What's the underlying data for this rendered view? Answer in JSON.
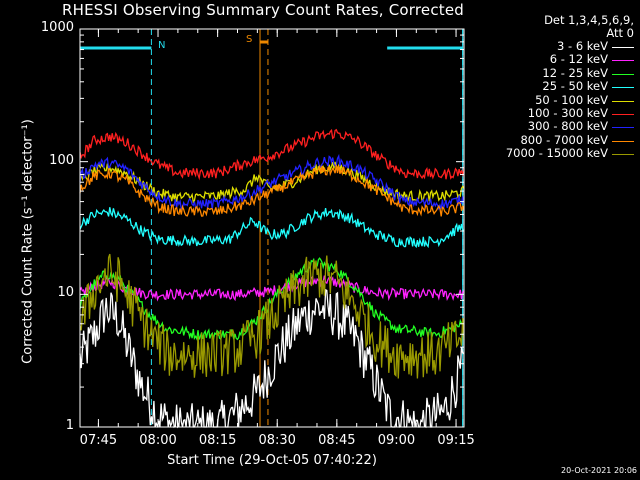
{
  "header": {
    "title": "RHESSI Observing Summary Count Rates, Corrected"
  },
  "footer": {
    "timestamp": "20-Oct-2021 20:06"
  },
  "colors": {
    "background": "#000000",
    "axes": "#ffffff",
    "night": "#22ddee",
    "saa": "#ee8800"
  },
  "chart_data": {
    "type": "line",
    "title": "RHESSI Observing Summary Count Rates, Corrected",
    "xlabel": "Start Time (29-Oct-05 07:40:22)",
    "ylabel": "Corrected Count Rate (s⁻¹ detector⁻¹)",
    "y_scale": "log",
    "ylim": [
      1,
      1000
    ],
    "xlim": [
      "07:40:22",
      "09:17:00"
    ],
    "y_ticks": [
      "1",
      "10",
      "100",
      "1000"
    ],
    "x_ticks": [
      "07:45",
      "08:00",
      "08:15",
      "08:30",
      "08:45",
      "09:00",
      "09:15"
    ],
    "legend_position": "right",
    "legend_header": [
      "Det 1,3,4,5,6,9,",
      "Att 0"
    ],
    "grid": false,
    "markers": {
      "N": {
        "label": "N",
        "color": "#22ddee",
        "solid_x": [
          "07:40:22",
          "09:16:40"
        ],
        "dashed_x": [
          "07:58:20",
          "09:16:40"
        ],
        "bars": [
          [
            "07:40:22",
            "07:58:20"
          ],
          [
            "08:57:40",
            "09:16:40"
          ]
        ]
      },
      "S": {
        "label": "S",
        "color": "#ee8800",
        "solid_x": [
          "08:25:40"
        ],
        "dashed_x": [
          "08:27:40"
        ],
        "bars": [
          [
            "08:25:40",
            "08:27:40"
          ]
        ]
      }
    },
    "series": [
      {
        "name": "3 - 6 keV",
        "color": "#ffffff",
        "points": [
          [
            "07:40",
            3.0
          ],
          [
            "07:44",
            5.0
          ],
          [
            "07:47",
            7.8
          ],
          [
            "07:50",
            6.5
          ],
          [
            "07:53",
            3.5
          ],
          [
            "07:56",
            2.0
          ],
          [
            "08:00",
            1.2
          ],
          [
            "08:05",
            1.0
          ],
          [
            "08:15",
            1.0
          ],
          [
            "08:20",
            1.3
          ],
          [
            "08:25",
            1.8
          ],
          [
            "08:30",
            3.5
          ],
          [
            "08:36",
            6.5
          ],
          [
            "08:40",
            8.0
          ],
          [
            "08:45",
            7.0
          ],
          [
            "08:50",
            4.5
          ],
          [
            "08:54",
            2.5
          ],
          [
            "08:58",
            1.3
          ],
          [
            "09:05",
            1.0
          ],
          [
            "09:12",
            1.3
          ],
          [
            "09:17",
            3.0
          ]
        ]
      },
      {
        "name": "6 - 12 keV",
        "color": "#ff22ff",
        "points": [
          [
            "07:40",
            10.0
          ],
          [
            "07:44",
            11.5
          ],
          [
            "07:48",
            12.5
          ],
          [
            "07:52",
            11.0
          ],
          [
            "07:56",
            10.2
          ],
          [
            "08:00",
            10.0
          ],
          [
            "08:10",
            10.0
          ],
          [
            "08:20",
            10.0
          ],
          [
            "08:28",
            10.5
          ],
          [
            "08:35",
            12.0
          ],
          [
            "08:42",
            13.0
          ],
          [
            "08:48",
            11.5
          ],
          [
            "08:55",
            10.2
          ],
          [
            "09:05",
            10.0
          ],
          [
            "09:17",
            10.0
          ]
        ]
      },
      {
        "name": "12 - 25 keV",
        "color": "#22ff22",
        "points": [
          [
            "07:40",
            8.0
          ],
          [
            "07:44",
            12.0
          ],
          [
            "07:47",
            14.5
          ],
          [
            "07:50",
            13.0
          ],
          [
            "07:54",
            9.5
          ],
          [
            "07:58",
            7.0
          ],
          [
            "08:02",
            5.5
          ],
          [
            "08:10",
            5.0
          ],
          [
            "08:20",
            5.0
          ],
          [
            "08:25",
            6.5
          ],
          [
            "08:30",
            10.0
          ],
          [
            "08:36",
            15.0
          ],
          [
            "08:40",
            17.5
          ],
          [
            "08:45",
            15.5
          ],
          [
            "08:50",
            11.0
          ],
          [
            "08:55",
            7.0
          ],
          [
            "09:00",
            5.5
          ],
          [
            "09:10",
            5.0
          ],
          [
            "09:17",
            6.0
          ]
        ]
      },
      {
        "name": "25 - 50 keV",
        "color": "#22ffff",
        "points": [
          [
            "07:40",
            33.0
          ],
          [
            "07:44",
            40.0
          ],
          [
            "07:48",
            42.0
          ],
          [
            "07:52",
            37.0
          ],
          [
            "07:56",
            30.0
          ],
          [
            "08:00",
            26.0
          ],
          [
            "08:10",
            25.0
          ],
          [
            "08:18",
            26.0
          ],
          [
            "08:24",
            36.0
          ],
          [
            "08:28",
            28.0
          ],
          [
            "08:32",
            29.0
          ],
          [
            "08:38",
            38.0
          ],
          [
            "08:43",
            42.0
          ],
          [
            "08:48",
            38.0
          ],
          [
            "08:54",
            29.0
          ],
          [
            "09:00",
            25.0
          ],
          [
            "09:10",
            25.0
          ],
          [
            "09:17",
            33.0
          ]
        ]
      },
      {
        "name": "50 - 100 keV",
        "color": "#dddd00",
        "points": [
          [
            "07:40",
            70.0
          ],
          [
            "07:44",
            85.0
          ],
          [
            "07:48",
            90.0
          ],
          [
            "07:52",
            82.0
          ],
          [
            "07:56",
            68.0
          ],
          [
            "08:00",
            58.0
          ],
          [
            "08:05",
            54.0
          ],
          [
            "08:15",
            55.0
          ],
          [
            "08:22",
            62.0
          ],
          [
            "08:25",
            78.0
          ],
          [
            "08:28",
            62.0
          ],
          [
            "08:34",
            70.0
          ],
          [
            "08:40",
            88.0
          ],
          [
            "08:45",
            92.0
          ],
          [
            "08:50",
            80.0
          ],
          [
            "08:56",
            62.0
          ],
          [
            "09:02",
            55.0
          ],
          [
            "09:12",
            55.0
          ],
          [
            "09:17",
            60.0
          ]
        ]
      },
      {
        "name": "100 - 300 keV",
        "color": "#ff2020",
        "points": [
          [
            "07:40",
            105.0
          ],
          [
            "07:44",
            145.0
          ],
          [
            "07:48",
            155.0
          ],
          [
            "07:52",
            140.0
          ],
          [
            "07:56",
            115.0
          ],
          [
            "08:00",
            95.0
          ],
          [
            "08:05",
            82.0
          ],
          [
            "08:15",
            82.0
          ],
          [
            "08:22",
            98.0
          ],
          [
            "08:28",
            110.0
          ],
          [
            "08:34",
            130.0
          ],
          [
            "08:40",
            155.0
          ],
          [
            "08:45",
            165.0
          ],
          [
            "08:50",
            145.0
          ],
          [
            "08:56",
            105.0
          ],
          [
            "09:02",
            82.0
          ],
          [
            "09:12",
            80.0
          ],
          [
            "09:17",
            85.0
          ]
        ]
      },
      {
        "name": "300 - 800 keV",
        "color": "#2222ff",
        "points": [
          [
            "07:40",
            75.0
          ],
          [
            "07:44",
            95.0
          ],
          [
            "07:48",
            98.0
          ],
          [
            "07:52",
            88.0
          ],
          [
            "07:56",
            68.0
          ],
          [
            "08:00",
            55.0
          ],
          [
            "08:05",
            48.0
          ],
          [
            "08:15",
            48.0
          ],
          [
            "08:22",
            55.0
          ],
          [
            "08:28",
            68.0
          ],
          [
            "08:34",
            82.0
          ],
          [
            "08:40",
            98.0
          ],
          [
            "08:45",
            102.0
          ],
          [
            "08:50",
            90.0
          ],
          [
            "08:56",
            68.0
          ],
          [
            "09:02",
            50.0
          ],
          [
            "09:12",
            48.0
          ],
          [
            "09:17",
            52.0
          ]
        ]
      },
      {
        "name": "800 - 7000 keV",
        "color": "#ff8800",
        "points": [
          [
            "07:40",
            62.0
          ],
          [
            "07:44",
            78.0
          ],
          [
            "07:48",
            82.0
          ],
          [
            "07:52",
            72.0
          ],
          [
            "07:56",
            56.0
          ],
          [
            "08:00",
            46.0
          ],
          [
            "08:05",
            42.0
          ],
          [
            "08:15",
            42.0
          ],
          [
            "08:22",
            48.0
          ],
          [
            "08:28",
            58.0
          ],
          [
            "08:34",
            70.0
          ],
          [
            "08:40",
            84.0
          ],
          [
            "08:45",
            88.0
          ],
          [
            "08:50",
            76.0
          ],
          [
            "08:56",
            58.0
          ],
          [
            "09:02",
            44.0
          ],
          [
            "09:12",
            42.0
          ],
          [
            "09:17",
            46.0
          ]
        ]
      },
      {
        "name": "7000 - 15000 keV",
        "color": "#999900",
        "points": [
          [
            "07:40",
            5.5
          ],
          [
            "07:44",
            11.0
          ],
          [
            "07:47",
            14.0
          ],
          [
            "07:50",
            13.0
          ],
          [
            "07:54",
            8.0
          ],
          [
            "07:58",
            5.0
          ],
          [
            "08:03",
            3.5
          ],
          [
            "08:12",
            3.5
          ],
          [
            "08:20",
            3.8
          ],
          [
            "08:25",
            5.0
          ],
          [
            "08:30",
            7.5
          ],
          [
            "08:36",
            12.0
          ],
          [
            "08:40",
            14.0
          ],
          [
            "08:45",
            12.5
          ],
          [
            "08:50",
            8.0
          ],
          [
            "08:55",
            4.5
          ],
          [
            "09:00",
            3.5
          ],
          [
            "09:10",
            3.5
          ],
          [
            "09:17",
            5.0
          ]
        ]
      }
    ]
  }
}
